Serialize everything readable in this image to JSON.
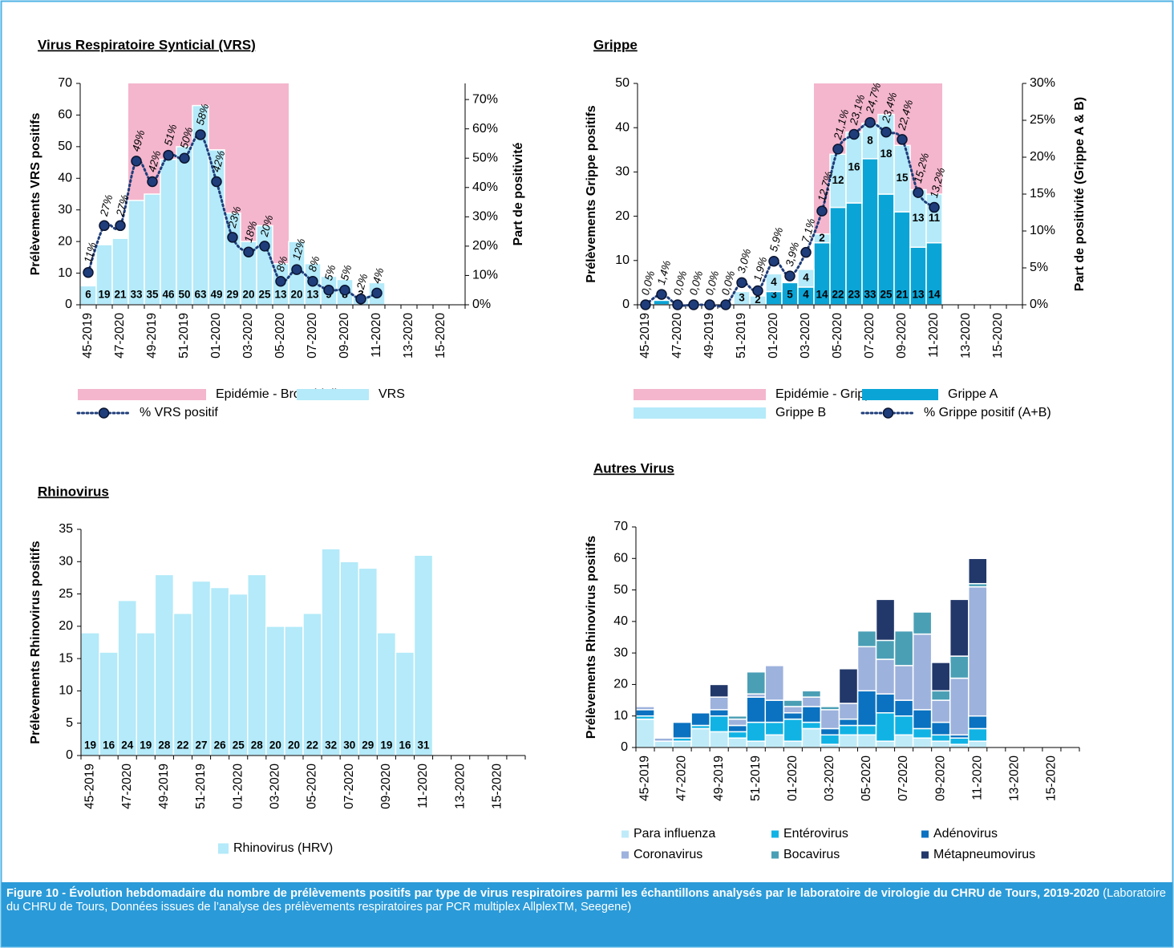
{
  "caption": {
    "bold": "Figure 10 -  Évolution hebdomadaire du nombre de prélèvements positifs par type de virus respiratoires parmi les échantillons analysés par le laboratoire de virologie du CHRU de Tours, 2019-2020",
    "normal": "(Laboratoire du CHRU de Tours, Données issues de l’analyse des prélèvements respiratoires par PCR multiplex AllplexTM, Seegene)"
  },
  "chart_data": [
    {
      "type": "bar",
      "title": "Virus Respiratoire Synticial (VRS)",
      "y_label": "Prélèvements VRS positifs",
      "y2_label": "Part de positivité",
      "stacked": false,
      "data_labels": true,
      "categories": [
        "45-2019",
        null,
        "47-2020",
        null,
        "49-2019",
        null,
        "51-2019",
        null,
        "01-2020",
        null,
        "03-2020",
        null,
        "05-2020",
        null,
        "07-2020",
        null,
        "09-2020",
        null,
        "11-2020",
        null,
        "13-2020",
        null,
        "15-2020",
        null
      ],
      "ylim": [
        0,
        70
      ],
      "yticks": [
        0,
        10,
        20,
        30,
        40,
        50,
        60,
        70
      ],
      "y2lim": [
        0,
        75.5
      ],
      "y2ticks": [
        {
          "value": 0,
          "label": "0%"
        },
        {
          "value": 10,
          "label": "10%"
        },
        {
          "value": 20,
          "label": "20%"
        },
        {
          "value": 30,
          "label": "30%"
        },
        {
          "value": 40,
          "label": "40%"
        },
        {
          "value": 50,
          "label": "50%"
        },
        {
          "value": 60,
          "label": "60%"
        },
        {
          "value": 70,
          "label": "70%"
        }
      ],
      "series": [
        {
          "name": "Epidémie - Bronchiolite",
          "kind": "band",
          "color": "#f4b6cd",
          "values": [
            null,
            null,
            null,
            70,
            70,
            70,
            70,
            70,
            70,
            70,
            70,
            70,
            70,
            null,
            null,
            null,
            null,
            null,
            null,
            null,
            null,
            null,
            null,
            null
          ]
        },
        {
          "name": "VRS",
          "color": "#b4eaf9",
          "values": [
            6,
            19,
            21,
            33,
            35,
            46,
            50,
            63,
            49,
            29,
            20,
            25,
            13,
            20,
            13,
            9,
            8,
            3,
            7,
            null,
            null,
            null,
            null,
            null
          ]
        },
        {
          "name": "% VRS positif",
          "kind": "line",
          "axis": "y2",
          "color": "#1f3d7a",
          "values": [
            11,
            27,
            27,
            49,
            42,
            51,
            50,
            58,
            42,
            23,
            18,
            20,
            8,
            12,
            8,
            5,
            5,
            2,
            4,
            null,
            null,
            null,
            null,
            null
          ],
          "value_labels": [
            "11%",
            "27%",
            "27%",
            "49%",
            "42%",
            "51%",
            "50%",
            "58%",
            "42%",
            "23%",
            "18%",
            "20%",
            "8%",
            "12%",
            "8%",
            "5%",
            "5%",
            "2%",
            "4%",
            null,
            null,
            null,
            null,
            null
          ]
        }
      ]
    },
    {
      "type": "bar",
      "title": "Grippe",
      "y_label": "Prélèvements Grippe positifs",
      "y2_label": "Part de positivité (Grippe A & B)",
      "stacked": true,
      "data_labels": true,
      "categories": [
        "45-2019",
        null,
        "47-2020",
        null,
        "49-2019",
        null,
        "51-2019",
        null,
        "01-2020",
        null,
        "03-2020",
        null,
        "05-2020",
        null,
        "07-2020",
        null,
        "09-2020",
        null,
        "11-2020",
        null,
        "13-2020",
        null,
        "15-2020",
        null
      ],
      "ylim": [
        0,
        50
      ],
      "yticks": [
        0,
        10,
        20,
        30,
        40,
        50
      ],
      "y2lim": [
        0,
        30
      ],
      "y2ticks": [
        {
          "value": 0,
          "label": "0%"
        },
        {
          "value": 5,
          "label": "5%"
        },
        {
          "value": 10,
          "label": "10%"
        },
        {
          "value": 15,
          "label": "15%"
        },
        {
          "value": 20,
          "label": "20%"
        },
        {
          "value": 25,
          "label": "25%"
        },
        {
          "value": 30,
          "label": "30%"
        }
      ],
      "series": [
        {
          "name": "Epidémie - Grippe",
          "kind": "band",
          "color": "#f4b6cd",
          "values": [
            null,
            null,
            null,
            null,
            null,
            null,
            null,
            null,
            null,
            null,
            null,
            50,
            50,
            50,
            50,
            50,
            50,
            50,
            50,
            null,
            null,
            null,
            null,
            null
          ]
        },
        {
          "name": "Grippe A",
          "color": "#0aa5d6",
          "values": [
            null,
            1,
            null,
            null,
            null,
            null,
            null,
            null,
            3,
            5,
            4,
            14,
            22,
            23,
            33,
            25,
            21,
            13,
            14,
            null,
            null,
            null,
            null,
            null
          ]
        },
        {
          "name": "Grippe B",
          "color": "#b4eaf9",
          "values": [
            null,
            null,
            null,
            null,
            null,
            null,
            3,
            2,
            4,
            null,
            4,
            2,
            12,
            16,
            8,
            18,
            15,
            13,
            11,
            null,
            null,
            null,
            null,
            null
          ]
        },
        {
          "name": "% Grippe positif (A+B)",
          "kind": "line",
          "axis": "y2",
          "color": "#1f3d7a",
          "values": [
            0,
            1.4,
            0,
            0,
            0,
            0,
            3.0,
            1.9,
            5.9,
            3.9,
            7.1,
            12.7,
            21.1,
            23.1,
            24.7,
            23.4,
            22.4,
            15.2,
            13.2,
            null,
            null,
            null,
            null,
            null
          ],
          "value_labels": [
            "0,0%",
            "1,4%",
            "0,0%",
            "0,0%",
            "0,0%",
            "0,0%",
            "3,0%",
            "1,9%",
            "5,9%",
            "3,9%",
            "7,1%",
            "12,7%",
            "21,1%",
            "23,1%",
            "24,7%",
            "23,4%",
            "22,4%",
            "15,2%",
            "13,2%",
            null,
            null,
            null,
            null,
            null
          ]
        }
      ]
    },
    {
      "type": "bar",
      "title": "Rhinovirus",
      "y_label": "Prélèvements Rhinovirus positifs",
      "stacked": false,
      "data_labels": true,
      "categories": [
        "45-2019",
        null,
        "47-2020",
        null,
        "49-2019",
        null,
        "51-2019",
        null,
        "01-2020",
        null,
        "03-2020",
        null,
        "05-2020",
        null,
        "07-2020",
        null,
        "09-2020",
        null,
        "11-2020",
        null,
        "13-2020",
        null,
        "15-2020",
        null
      ],
      "ylim": [
        0,
        35
      ],
      "yticks": [
        0,
        5,
        10,
        15,
        20,
        25,
        30,
        35
      ],
      "series": [
        {
          "name": "Rhinovirus (HRV)",
          "color": "#b4eaf9",
          "values": [
            19,
            16,
            24,
            19,
            28,
            22,
            27,
            26,
            25,
            28,
            20,
            20,
            22,
            32,
            30,
            29,
            19,
            16,
            31,
            null,
            null,
            null,
            null,
            null
          ]
        }
      ]
    },
    {
      "type": "bar",
      "title": "Autres Virus",
      "y_label": "Prélèvements Rhinovirus positifs",
      "stacked": true,
      "data_labels": false,
      "categories": [
        "45-2019",
        null,
        "47-2020",
        null,
        "49-2019",
        null,
        "51-2019",
        null,
        "01-2020",
        null,
        "03-2020",
        null,
        "05-2020",
        null,
        "07-2020",
        null,
        "09-2020",
        null,
        "11-2020",
        null,
        "13-2020",
        null,
        "15-2020",
        null
      ],
      "ylim": [
        0,
        70
      ],
      "yticks": [
        0,
        10,
        20,
        30,
        40,
        50,
        60,
        70
      ],
      "series": [
        {
          "name": "Para influenza",
          "color": "#bfebf8",
          "values": [
            9,
            2,
            2,
            6,
            5,
            3,
            2,
            4,
            2,
            6,
            1,
            4,
            4,
            2,
            4,
            3,
            2,
            1,
            2,
            null,
            null,
            null,
            null,
            null
          ]
        },
        {
          "name": "Entérovirus",
          "color": "#11b3e4",
          "values": [
            1,
            0,
            1,
            1,
            5,
            2,
            6,
            4,
            7,
            2,
            3,
            3,
            3,
            9,
            6,
            3,
            2,
            2,
            4,
            null,
            null,
            null,
            null,
            null
          ]
        },
        {
          "name": "Adénovirus",
          "color": "#0a72c0",
          "values": [
            2,
            0,
            5,
            4,
            2,
            2,
            8,
            7,
            2,
            5,
            2,
            2,
            11,
            6,
            5,
            6,
            4,
            1,
            4,
            null,
            null,
            null,
            null,
            null
          ]
        },
        {
          "name": "Coronavirus",
          "color": "#9db2dc",
          "values": [
            1,
            1,
            0,
            0,
            4,
            2,
            1,
            11,
            2,
            3,
            6,
            5,
            14,
            11,
            11,
            24,
            7,
            18,
            41,
            null,
            null,
            null,
            null,
            null
          ]
        },
        {
          "name": "Bocavirus",
          "color": "#4a9fb5",
          "values": [
            0,
            0,
            0,
            0,
            0,
            1,
            7,
            0,
            2,
            2,
            1,
            0,
            5,
            6,
            11,
            7,
            3,
            7,
            1,
            null,
            null,
            null,
            null,
            null
          ]
        },
        {
          "name": "Métapneumovirus",
          "color": "#22386a",
          "values": [
            0,
            0,
            0,
            0,
            4,
            0,
            0,
            0,
            0,
            0,
            0,
            11,
            0,
            13,
            0,
            0,
            9,
            18,
            8,
            null,
            null,
            null,
            null,
            null
          ]
        }
      ]
    }
  ]
}
